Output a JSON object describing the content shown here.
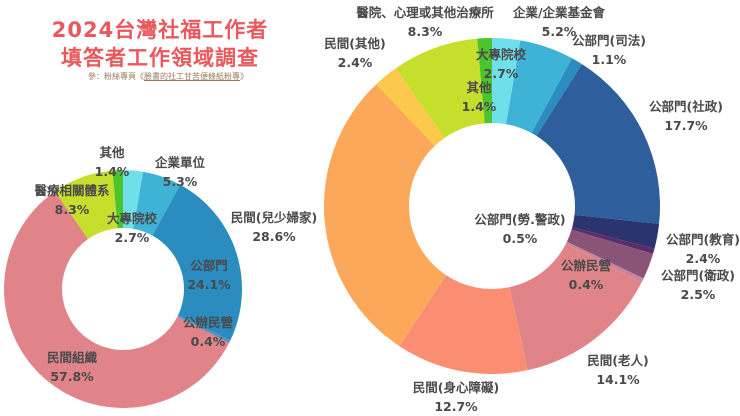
{
  "title": {
    "line1": "2024台灣社福工作者",
    "line2": "填答者工作領域調查",
    "subtitle_prefix": "參：粉絲專頁《",
    "subtitle_link": "臉書的社工甘苦便條紙粉專",
    "subtitle_suffix": "》"
  },
  "chart_data": [
    {
      "type": "pie",
      "variant": "donut",
      "title": "2024台灣社福工作者填答者工作領域調查 (大分類)",
      "categories": [
        "大專院校",
        "企業單位",
        "公部門",
        "公辦民營",
        "民間組織",
        "醫療相關體系",
        "其他"
      ],
      "values": [
        2.7,
        5.3,
        24.1,
        0.4,
        57.8,
        8.3,
        1.4
      ],
      "unit": "%",
      "colors": [
        "#6fe0ea",
        "#3fb3d6",
        "#2b8cc0",
        "#5a8fc2",
        "#e0848a",
        "#c6de2c",
        "#4cc42c"
      ],
      "labels": [
        {
          "name": "大專院校",
          "value": "2.7%"
        },
        {
          "name": "企業單位",
          "value": "5.3%"
        },
        {
          "name": "公部門",
          "value": "24.1%"
        },
        {
          "name": "公辦民營",
          "value": "0.4%"
        },
        {
          "name": "民間組織",
          "value": "57.8%"
        },
        {
          "name": "醫療相關體系",
          "value": "8.3%"
        },
        {
          "name": "其他",
          "value": "1.4%"
        }
      ],
      "extra_label": {
        "name": "民間(兒少婦家)",
        "value": "28.6%"
      }
    },
    {
      "type": "pie",
      "variant": "donut",
      "title": "2024台灣社福工作者填答者工作領域調查 (細分類)",
      "categories": [
        "大專院校",
        "企業/企業基金會",
        "公部門(司法)",
        "公部門(社政)",
        "公部門(教育)",
        "公部門(勞.警政)",
        "公部門(衛政)",
        "公辦民營",
        "民間(老人)",
        "民間(身心障礙)",
        "民間(兒少婦家)",
        "民間(其他)",
        "醫院、心理或其他治療所",
        "其他"
      ],
      "values": [
        2.7,
        5.2,
        1.1,
        17.7,
        2.4,
        0.5,
        2.5,
        0.4,
        14.1,
        12.7,
        28.6,
        2.4,
        8.3,
        1.4
      ],
      "unit": "%",
      "colors": [
        "#6fe0ea",
        "#3fb3d6",
        "#2b8cc0",
        "#2e5f9c",
        "#2c3470",
        "#5a2d6a",
        "#8a5478",
        "#c98596",
        "#e0848a",
        "#fb8e72",
        "#fba85a",
        "#fdc94c",
        "#c6de2c",
        "#4cc42c"
      ],
      "labels": [
        {
          "name": "大專院校",
          "value": "2.7%"
        },
        {
          "name": "企業/企業基金會",
          "value": "5.2%"
        },
        {
          "name": "公部門(司法)",
          "value": "1.1%"
        },
        {
          "name": "公部門(社政)",
          "value": "17.7%"
        },
        {
          "name": "公部門(教育)",
          "value": "2.4%"
        },
        {
          "name": "公部門(勞.警政)",
          "value": "0.5%"
        },
        {
          "name": "公部門(衛政)",
          "value": "2.5%"
        },
        {
          "name": "公辦民營",
          "value": "0.4%"
        },
        {
          "name": "民間(老人)",
          "value": "14.1%"
        },
        {
          "name": "民間(身心障礙)",
          "value": "12.7%"
        },
        {
          "name": "民間(其他)",
          "value": "2.4%"
        },
        {
          "name": "醫院、心理或其他治療所",
          "value": "8.3%"
        },
        {
          "name": "其他",
          "value": "1.4%"
        }
      ]
    }
  ]
}
